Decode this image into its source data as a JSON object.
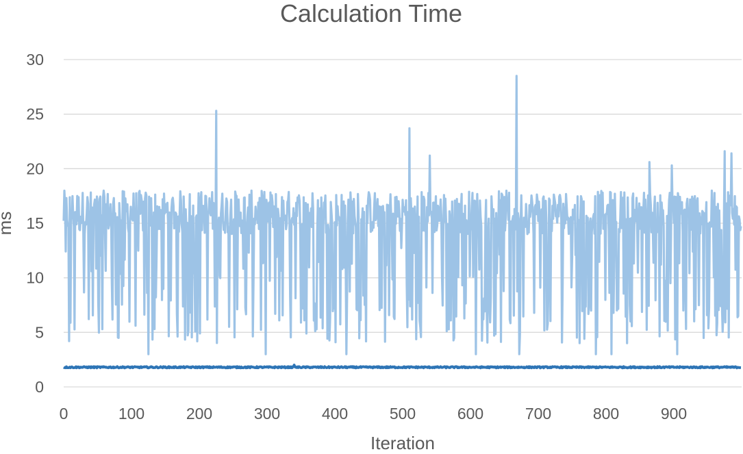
{
  "chart_data": {
    "type": "line",
    "title": "Calculation Time",
    "xlabel": "Iteration",
    "ylabel": "ms",
    "xlim": [
      0,
      1000
    ],
    "ylim": [
      0,
      30
    ],
    "xticks": [
      "0",
      "100",
      "200",
      "300",
      "400",
      "500",
      "600",
      "700",
      "800",
      "900"
    ],
    "yticks": [
      "0",
      "5",
      "10",
      "15",
      "20",
      "25",
      "30"
    ],
    "grid": "horizontal",
    "legend": "none",
    "series": [
      {
        "color": "#9dc3e6",
        "description_values": {
          "points": 1000,
          "typical_range": [
            4,
            18
          ],
          "baseline": 15.5,
          "spikes": [
            [
              225,
              25.3
            ],
            [
              510,
              23.7
            ],
            [
              540,
              21.2
            ],
            [
              668,
              28.5
            ],
            [
              864,
              20.6
            ],
            [
              897,
              20.3
            ],
            [
              975,
              21.6
            ],
            [
              985,
              21.4
            ]
          ],
          "dips": [
            [
              8,
              4.2
            ],
            [
              125,
              3.0
            ],
            [
              298,
              3.0
            ],
            [
              417,
              3.0
            ],
            [
              608,
              3.0
            ],
            [
              672,
              3.0
            ],
            [
              785,
              3.0
            ],
            [
              808,
              3.0
            ],
            [
              905,
              3.0
            ]
          ]
        }
      },
      {
        "color": "#2e75b6",
        "description_values": {
          "points": 1000,
          "mean": 1.8,
          "min": 1.7,
          "max": 2.0
        }
      }
    ]
  }
}
